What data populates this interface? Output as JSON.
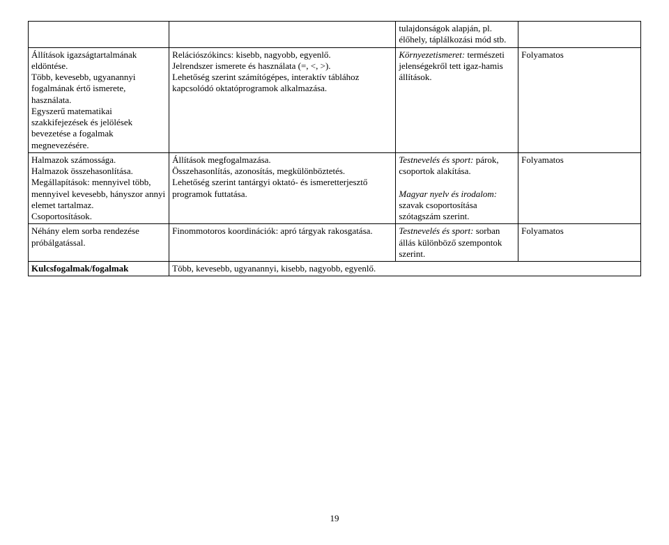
{
  "table": {
    "rows": [
      {
        "c1": "",
        "c2": "",
        "c3": "tulajdonságok alapján, pl. élőhely, táplálkozási mód stb.",
        "c4": ""
      },
      {
        "c1": "Állítások igazságtartalmának eldöntése.\nTöbb, kevesebb, ugyanannyi fogalmának értő ismerete, használata.\nEgyszerű matematikai szakkifejezések és jelölések bevezetése a fogalmak megnevezésére.",
        "c2": "Relációszókincs: kisebb, nagyobb, egyenlő.\nJelrendszer ismerete és használata (=, <, >).\nLehetőség szerint számítógépes, interaktív táblához kapcsolódó oktatóprogramok alkalmazása.",
        "c3_italic1": "Környezetismeret:",
        "c3_rest1": " természeti jelenségekről tett igaz-hamis állítások.",
        "c4": "Folyamatos"
      },
      {
        "c1": "Halmazok számossága.\nHalmazok összehasonlítása.\nMegállapítások: mennyivel több, mennyivel kevesebb, hányszor annyi elemet tartalmaz.\nCsoportosítások.",
        "c2": "Állítások megfogalmazása.\nÖsszehasonlítás, azonosítás, megkülönböztetés.\nLehetőség szerint tantárgyi oktató- és ismeretterjesztő programok futtatása.",
        "c3_italic1": "Testnevelés és sport:",
        "c3_rest1": " párok, csoportok alakítása.",
        "c3_italic2": "Magyar nyelv és irodalom:",
        "c3_rest2": " szavak csoportosítása szótagszám szerint.",
        "c4": "Folyamatos"
      },
      {
        "c1": "Néhány elem sorba rendezése próbálgatással.",
        "c2": "Finommotoros koordinációk: apró tárgyak rakosgatása.",
        "c3_italic1": "Testnevelés és sport:",
        "c3_rest1": " sorban állás különböző szempontok szerint.",
        "c4": "Folyamatos"
      }
    ],
    "footer": {
      "label": "Kulcsfogalmak/fogalmak",
      "value": "Több, kevesebb, ugyanannyi, kisebb, nagyobb, egyenlő."
    }
  },
  "page_number": "19"
}
